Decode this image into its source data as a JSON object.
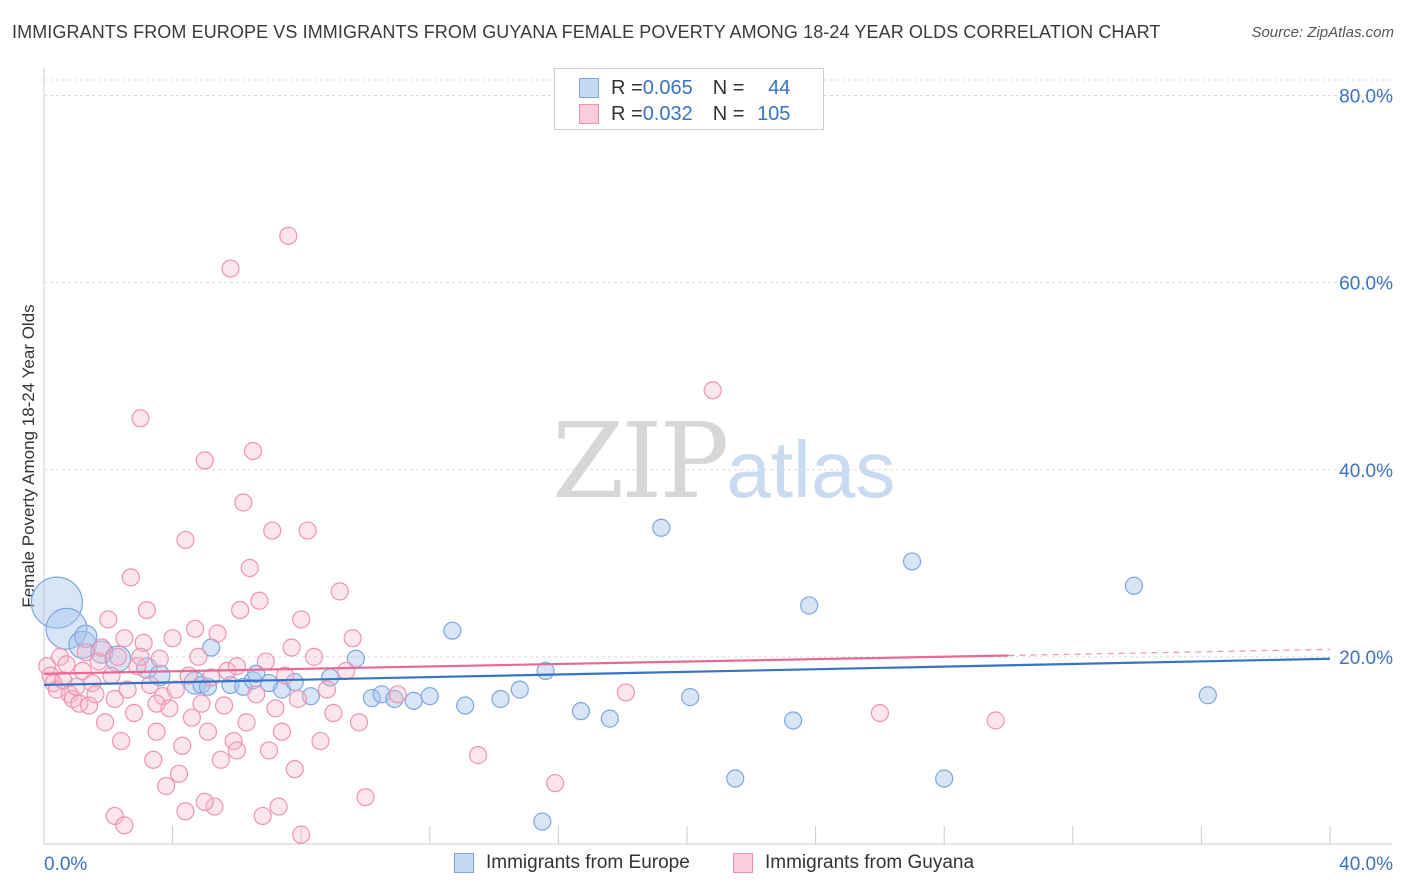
{
  "header": {
    "title": "IMMIGRANTS FROM EUROPE VS IMMIGRANTS FROM GUYANA FEMALE POVERTY AMONG 18-24 YEAR OLDS CORRELATION CHART",
    "source": "Source: ZipAtlas.com"
  },
  "watermark": {
    "zip": "ZIP",
    "atlas": "atlas"
  },
  "legend_top": {
    "rows": [
      {
        "r_label": "R = ",
        "r_value": "0.065",
        "n_label": "N = ",
        "n_value": "44",
        "color": "#a9c6ee"
      },
      {
        "r_label": "R = ",
        "r_value": "0.032",
        "n_label": "N = ",
        "n_value": "105",
        "color": "#f6b8cb"
      }
    ]
  },
  "legend_bottom": {
    "europe": {
      "label": "Immigrants from Europe",
      "color": "#a9c6ee"
    },
    "guyana": {
      "label": "Immigrants from Guyana",
      "color": "#f6b8cb"
    }
  },
  "chart_data": {
    "type": "scatter",
    "title": "IMMIGRANTS FROM EUROPE VS IMMIGRANTS FROM GUYANA FEMALE POVERTY AMONG 18-24 YEAR OLDS CORRELATION CHART",
    "xlabel": "",
    "ylabel": "Female Poverty Among 18-24 Year Olds",
    "xlim": [
      0,
      40
    ],
    "ylim": [
      0,
      80
    ],
    "x_tick_labels": [
      "0.0%",
      "40.0%"
    ],
    "y_ticks": [
      20,
      40,
      60,
      80
    ],
    "y_tick_labels": [
      "20.0%",
      "40.0%",
      "60.0%",
      "80.0%"
    ],
    "colors": {
      "europe": "#3a73c4",
      "guyana": "#e76a95",
      "axis_label": "#3a73c4"
    },
    "series": [
      {
        "name": "Immigrants from Europe",
        "marker_color": "#a9c6ee",
        "trend": {
          "x0": 0,
          "y0": 17.0,
          "x1": 40,
          "y1": 19.8,
          "dashed_from": null
        },
        "points": [
          [
            0.4,
            25.8,
            3
          ],
          [
            0.7,
            23.0,
            2.4
          ],
          [
            1.2,
            21.3,
            1.6
          ],
          [
            1.3,
            22.2,
            1.3
          ],
          [
            1.8,
            20.5,
            1.3
          ],
          [
            2.3,
            19.8,
            1.5
          ],
          [
            3.2,
            18.8,
            1.2
          ],
          [
            3.6,
            18.0,
            1.2
          ],
          [
            4.7,
            17.2,
            1.3
          ],
          [
            4.9,
            17.0,
            1
          ],
          [
            5.1,
            16.8,
            1
          ],
          [
            5.2,
            21.0,
            1
          ],
          [
            5.8,
            17.0,
            1
          ],
          [
            6.2,
            16.8,
            1
          ],
          [
            6.5,
            17.5,
            1
          ],
          [
            6.6,
            18.2,
            1
          ],
          [
            7.0,
            17.2,
            1
          ],
          [
            7.4,
            16.5,
            1
          ],
          [
            7.8,
            17.3,
            1
          ],
          [
            8.3,
            15.8,
            1
          ],
          [
            8.9,
            17.8,
            1
          ],
          [
            9.7,
            19.8,
            1
          ],
          [
            10.2,
            15.6,
            1
          ],
          [
            10.5,
            16.0,
            1
          ],
          [
            10.9,
            15.5,
            1
          ],
          [
            11.5,
            15.3,
            1
          ],
          [
            12.0,
            15.8,
            1
          ],
          [
            12.7,
            22.8,
            1
          ],
          [
            13.1,
            14.8,
            1
          ],
          [
            14.2,
            15.5,
            1
          ],
          [
            14.8,
            16.5,
            1
          ],
          [
            15.6,
            18.5,
            1
          ],
          [
            16.7,
            14.2,
            1
          ],
          [
            17.6,
            13.4,
            1
          ],
          [
            19.2,
            33.8,
            1
          ],
          [
            20.1,
            15.7,
            1
          ],
          [
            21.5,
            7.0,
            1
          ],
          [
            23.3,
            13.2,
            1
          ],
          [
            23.8,
            25.5,
            1
          ],
          [
            27.0,
            30.2,
            1
          ],
          [
            28.0,
            7.0,
            1
          ],
          [
            33.9,
            27.6,
            1
          ],
          [
            36.2,
            15.9,
            1
          ],
          [
            15.5,
            2.4,
            1
          ]
        ]
      },
      {
        "name": "Immigrants from Guyana",
        "marker_color": "#f6b8cb",
        "trend": {
          "x0": 0,
          "y0": 18.2,
          "x1": 40,
          "y1": 20.8,
          "dashed_from": 30
        },
        "points": [
          [
            0.1,
            19.0,
            1
          ],
          [
            0.2,
            18.0,
            1
          ],
          [
            0.3,
            17.2,
            1
          ],
          [
            0.4,
            16.5,
            1
          ],
          [
            0.5,
            20.0,
            1
          ],
          [
            0.6,
            17.5,
            1
          ],
          [
            0.7,
            19.2,
            1
          ],
          [
            0.8,
            16.0,
            1
          ],
          [
            0.9,
            15.5,
            1
          ],
          [
            1.0,
            16.8,
            1
          ],
          [
            1.1,
            15.0,
            1
          ],
          [
            1.2,
            18.5,
            1
          ],
          [
            1.3,
            20.5,
            1
          ],
          [
            1.4,
            14.8,
            1
          ],
          [
            1.5,
            17.2,
            1
          ],
          [
            1.6,
            16.0,
            1
          ],
          [
            1.7,
            19.5,
            1
          ],
          [
            1.8,
            21.0,
            1
          ],
          [
            1.9,
            13.0,
            1
          ],
          [
            2.0,
            24.0,
            1
          ],
          [
            2.1,
            18.0,
            1
          ],
          [
            2.2,
            15.5,
            1
          ],
          [
            2.3,
            20.0,
            1
          ],
          [
            2.4,
            11.0,
            1
          ],
          [
            2.5,
            22.0,
            1
          ],
          [
            2.6,
            16.5,
            1
          ],
          [
            2.7,
            28.5,
            1
          ],
          [
            2.8,
            14.0,
            1
          ],
          [
            2.9,
            19.0,
            1
          ],
          [
            3.0,
            45.5,
            1
          ],
          [
            3.1,
            21.5,
            1
          ],
          [
            3.2,
            25.0,
            1
          ],
          [
            3.3,
            17.0,
            1
          ],
          [
            3.4,
            9.0,
            1
          ],
          [
            3.5,
            12.0,
            1
          ],
          [
            3.6,
            19.8,
            1
          ],
          [
            3.7,
            15.8,
            1
          ],
          [
            3.8,
            6.2,
            1
          ],
          [
            3.9,
            14.5,
            1
          ],
          [
            4.0,
            22.0,
            1
          ],
          [
            4.1,
            16.5,
            1
          ],
          [
            4.2,
            7.5,
            1
          ],
          [
            4.3,
            10.5,
            1
          ],
          [
            4.4,
            32.5,
            1
          ],
          [
            4.5,
            18.0,
            1
          ],
          [
            4.6,
            13.5,
            1
          ],
          [
            4.7,
            23.0,
            1
          ],
          [
            4.8,
            20.0,
            1
          ],
          [
            4.9,
            15.0,
            1
          ],
          [
            5.0,
            41.0,
            1
          ],
          [
            5.1,
            12.0,
            1
          ],
          [
            5.2,
            17.8,
            1
          ],
          [
            5.3,
            4.0,
            1
          ],
          [
            5.4,
            22.5,
            1
          ],
          [
            5.5,
            9.0,
            1
          ],
          [
            5.6,
            14.8,
            1
          ],
          [
            5.7,
            18.5,
            1
          ],
          [
            5.8,
            61.5,
            1
          ],
          [
            5.9,
            11.0,
            1
          ],
          [
            6.0,
            19.0,
            1
          ],
          [
            6.1,
            25.0,
            1
          ],
          [
            6.2,
            36.5,
            1
          ],
          [
            6.3,
            13.0,
            1
          ],
          [
            6.4,
            29.5,
            1
          ],
          [
            6.5,
            42.0,
            1
          ],
          [
            6.6,
            16.0,
            1
          ],
          [
            6.7,
            26.0,
            1
          ],
          [
            6.8,
            3.0,
            1
          ],
          [
            6.9,
            19.5,
            1
          ],
          [
            7.0,
            10.0,
            1
          ],
          [
            7.1,
            33.5,
            1
          ],
          [
            7.2,
            14.5,
            1
          ],
          [
            7.3,
            4.0,
            1
          ],
          [
            7.4,
            12.0,
            1
          ],
          [
            7.5,
            18.0,
            1
          ],
          [
            7.6,
            65.0,
            1
          ],
          [
            7.7,
            21.0,
            1
          ],
          [
            7.8,
            8.0,
            1
          ],
          [
            7.9,
            15.5,
            1
          ],
          [
            8.0,
            1.0,
            1
          ],
          [
            8.2,
            33.5,
            1
          ],
          [
            8.4,
            20.0,
            1
          ],
          [
            8.6,
            11.0,
            1
          ],
          [
            8.8,
            16.5,
            1
          ],
          [
            9.0,
            14.0,
            1
          ],
          [
            9.2,
            27.0,
            1
          ],
          [
            9.4,
            18.5,
            1
          ],
          [
            9.6,
            22.0,
            1
          ],
          [
            9.8,
            13.0,
            1
          ],
          [
            10.0,
            5.0,
            1
          ],
          [
            2.2,
            3.0,
            1
          ],
          [
            2.5,
            2.0,
            1
          ],
          [
            3.5,
            15.0,
            1
          ],
          [
            4.4,
            3.5,
            1
          ],
          [
            5.0,
            4.5,
            1
          ],
          [
            11.0,
            16.0,
            1
          ],
          [
            13.5,
            9.5,
            1
          ],
          [
            15.9,
            6.5,
            1
          ],
          [
            18.1,
            16.2,
            1
          ],
          [
            20.8,
            48.5,
            1
          ],
          [
            26.0,
            14.0,
            1
          ],
          [
            29.6,
            13.2,
            1
          ],
          [
            3.0,
            20.0,
            1
          ],
          [
            6.0,
            10.0,
            1
          ],
          [
            8.0,
            24.0,
            1
          ]
        ]
      }
    ]
  }
}
